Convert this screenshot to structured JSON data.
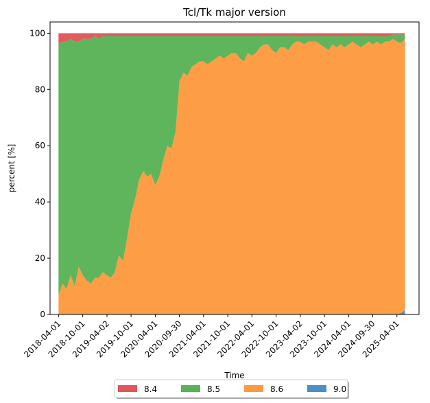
{
  "chart_data": {
    "type": "area",
    "title": "Tcl/Tk major version",
    "xlabel": "Time",
    "ylabel": "percent [%]",
    "ylim": [
      0,
      104
    ],
    "yticks": [
      0,
      20,
      40,
      60,
      80,
      100
    ],
    "xticks": [
      "2018-04-01",
      "2018-10-01",
      "2019-04-02",
      "2019-10-01",
      "2020-04-01",
      "2020-09-30",
      "2021-04-01",
      "2021-10-01",
      "2022-04-01",
      "2022-10-01",
      "2023-04-02",
      "2023-10-01",
      "2024-04-01",
      "2024-09-30",
      "2025-04-01"
    ],
    "legend_position": "bottom-center",
    "stack_order": [
      "9.0",
      "8.6",
      "8.5",
      "8.4"
    ],
    "legend_order": [
      "8.4",
      "8.5",
      "8.6",
      "9.0"
    ],
    "colors": {
      "8.4": "#e15759",
      "8.5": "#59b357",
      "8.6": "#fd9a40",
      "9.0": "#4a8fc6"
    },
    "x": [
      "2018-04-01",
      "2018-05-01",
      "2018-06-01",
      "2018-07-01",
      "2018-08-01",
      "2018-09-01",
      "2018-10-01",
      "2018-11-01",
      "2018-12-01",
      "2019-01-01",
      "2019-02-01",
      "2019-03-01",
      "2019-04-01",
      "2019-05-01",
      "2019-06-01",
      "2019-07-01",
      "2019-08-01",
      "2019-09-01",
      "2019-10-01",
      "2019-11-01",
      "2019-12-01",
      "2020-01-01",
      "2020-02-01",
      "2020-03-01",
      "2020-04-01",
      "2020-05-01",
      "2020-06-01",
      "2020-07-01",
      "2020-08-01",
      "2020-09-01",
      "2020-10-01",
      "2020-11-01",
      "2020-12-01",
      "2021-01-01",
      "2021-02-01",
      "2021-03-01",
      "2021-04-01",
      "2021-05-01",
      "2021-06-01",
      "2021-07-01",
      "2021-08-01",
      "2021-09-01",
      "2021-10-01",
      "2021-11-01",
      "2021-12-01",
      "2022-01-01",
      "2022-02-01",
      "2022-03-01",
      "2022-04-01",
      "2022-05-01",
      "2022-06-01",
      "2022-07-01",
      "2022-08-01",
      "2022-09-01",
      "2022-10-01",
      "2022-11-01",
      "2022-12-01",
      "2023-01-01",
      "2023-02-01",
      "2023-03-01",
      "2023-04-01",
      "2023-05-01",
      "2023-06-01",
      "2023-07-01",
      "2023-08-01",
      "2023-09-01",
      "2023-10-01",
      "2023-11-01",
      "2023-12-01",
      "2024-01-01",
      "2024-02-01",
      "2024-03-01",
      "2024-04-01",
      "2024-05-01",
      "2024-06-01",
      "2024-07-01",
      "2024-08-01",
      "2024-09-01",
      "2024-10-01",
      "2024-11-01",
      "2024-12-01",
      "2025-01-01",
      "2025-02-01",
      "2025-03-01",
      "2025-04-01",
      "2025-05-01",
      "2025-06-01"
    ],
    "series": [
      {
        "name": "9.0",
        "values": [
          0,
          0,
          0,
          0,
          0,
          0,
          0,
          0,
          0,
          0,
          0,
          0,
          0,
          0,
          0,
          0,
          0,
          0,
          0,
          0,
          0,
          0,
          0,
          0,
          0,
          0,
          0,
          0,
          0,
          0,
          0,
          0,
          0,
          0,
          0,
          0,
          0,
          0,
          0,
          0,
          0,
          0,
          0,
          0,
          0,
          0,
          0,
          0,
          0,
          0,
          0,
          0,
          0,
          0,
          0,
          0,
          0,
          0,
          0,
          0,
          0,
          0,
          0,
          0,
          0,
          0,
          0,
          0,
          0,
          0,
          0,
          0,
          0,
          0,
          0,
          0,
          0,
          0,
          0,
          0,
          0,
          0,
          0,
          0,
          0,
          0.5,
          1.5
        ]
      },
      {
        "name": "8.6",
        "values": [
          7,
          11,
          9,
          14,
          10,
          17,
          14,
          12,
          11,
          13,
          13,
          15,
          14,
          13,
          15,
          21,
          19,
          27,
          36,
          41,
          48,
          51,
          49,
          50,
          46,
          49,
          55,
          60,
          59,
          65,
          83,
          86,
          85,
          88,
          89,
          90,
          90,
          89,
          90,
          91,
          92,
          91,
          92,
          93,
          93,
          91,
          90,
          93,
          92,
          93,
          95,
          96,
          96,
          94,
          93,
          95,
          95,
          94,
          96,
          97,
          97,
          96,
          97,
          97,
          97,
          96,
          95,
          94,
          96,
          95,
          96,
          95,
          96,
          97,
          96,
          95,
          96,
          97,
          96,
          97,
          96,
          97,
          97,
          98,
          97,
          96,
          96.5
        ]
      },
      {
        "name": "8.5",
        "values": [
          89,
          86,
          88,
          84,
          87,
          80,
          84,
          86,
          87,
          86,
          85,
          84,
          85,
          86,
          84,
          78,
          80,
          72,
          63,
          58,
          51,
          48,
          50,
          49,
          53,
          50,
          44,
          39,
          40,
          34,
          16,
          13,
          14,
          11,
          10,
          9,
          9,
          10,
          9,
          8,
          7,
          8,
          7,
          6,
          6,
          8,
          9,
          6,
          7,
          6,
          4,
          3,
          3,
          5,
          6,
          4,
          4,
          5,
          3,
          2,
          2,
          3,
          2,
          2,
          2,
          3,
          4,
          5,
          3,
          4,
          3,
          4,
          3,
          2,
          3,
          4,
          3,
          2,
          3,
          2,
          3,
          2,
          2,
          1.5,
          2.5,
          3,
          1.5
        ]
      },
      {
        "name": "8.4",
        "values": [
          4,
          3,
          3,
          2,
          3,
          3,
          2,
          2,
          2,
          1,
          2,
          1,
          1,
          1,
          1,
          1,
          1,
          1,
          1,
          1,
          1,
          1,
          1,
          1,
          1,
          1,
          1,
          1,
          1,
          1,
          1,
          1,
          1,
          1,
          1,
          1,
          1,
          1,
          1,
          1,
          1,
          1,
          1,
          1,
          1,
          1,
          1,
          1,
          1,
          1,
          1,
          1,
          1,
          1,
          1,
          1,
          1,
          1,
          1,
          1,
          1,
          1,
          1,
          1,
          1,
          1,
          1,
          1,
          1,
          1,
          1,
          1,
          1,
          1,
          1,
          1,
          1,
          1,
          1,
          1,
          1,
          1,
          1,
          0.5,
          0.5,
          0.5,
          0.5
        ]
      }
    ]
  }
}
